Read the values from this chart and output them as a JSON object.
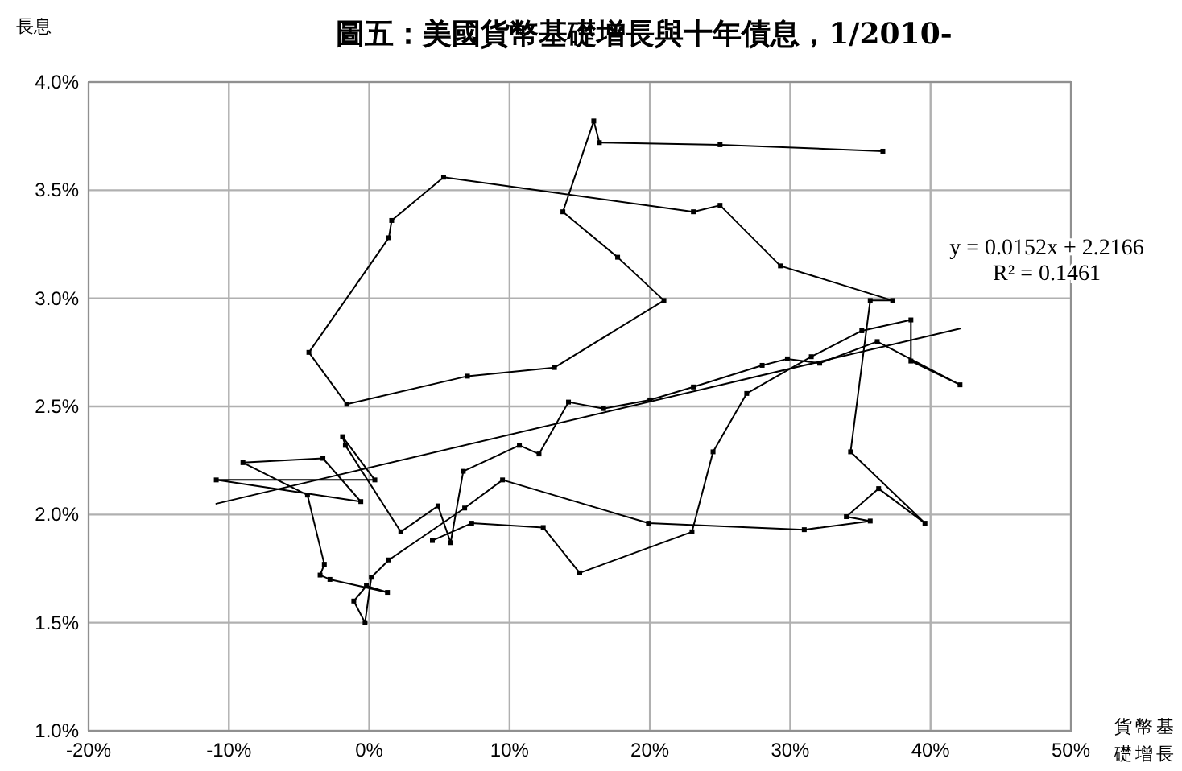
{
  "chart_data": {
    "type": "line",
    "title": "圖五：美國貨幣基礎增長與十年債息，1/2010-",
    "xlabel": "貨幣基礎增長",
    "ylabel": "長息",
    "xlim": [
      -20,
      50
    ],
    "ylim": [
      1,
      4
    ],
    "xticks": [
      {
        "value": -20,
        "label": "-20%"
      },
      {
        "value": -10,
        "label": "-10%"
      },
      {
        "value": 0,
        "label": "0%"
      },
      {
        "value": 10,
        "label": "10%"
      },
      {
        "value": 20,
        "label": "20%"
      },
      {
        "value": 30,
        "label": "30%"
      },
      {
        "value": 40,
        "label": "40%"
      },
      {
        "value": 50,
        "label": "50%"
      }
    ],
    "yticks": [
      {
        "value": 1,
        "label": "1.0%"
      },
      {
        "value": 1.5,
        "label": "1.5%"
      },
      {
        "value": 2,
        "label": "2.0%"
      },
      {
        "value": 2.5,
        "label": "2.5%"
      },
      {
        "value": 3,
        "label": "3.0%"
      },
      {
        "value": 3.5,
        "label": "3.5%"
      },
      {
        "value": 4,
        "label": "4.0%"
      }
    ],
    "grid": true,
    "marker": "square",
    "line_style": "solid",
    "annotations": [
      "y = 0.0152x + 2.2166",
      "R² = 0.1461"
    ],
    "series": [
      {
        "color": "#000000",
        "x": [
          36.6,
          25.0,
          16.4,
          16.0,
          13.8,
          17.7,
          21.0,
          13.2,
          7.0,
          -1.6,
          -4.3,
          1.4,
          1.6,
          5.3,
          23.1,
          25.0,
          29.3,
          37.3,
          35.7,
          34.3,
          39.6,
          36.3,
          34.0,
          35.7,
          31.0,
          19.9,
          9.5,
          6.8,
          1.4,
          0.15,
          -0.3,
          -1.1,
          -0.2,
          1.3,
          -2.8,
          -3.5,
          -3.2,
          -4.4,
          -9.0,
          -3.3,
          -0.6,
          -10.9,
          0.4,
          -1.9,
          -1.7,
          2.25,
          4.9,
          5.8,
          6.7,
          10.7,
          12.1,
          14.2,
          16.7,
          20.0,
          23.1,
          28.0,
          29.8,
          32.1,
          36.2,
          42.1,
          38.6,
          38.6,
          35.1,
          31.5,
          26.9,
          24.5,
          23.0,
          15.0,
          12.4,
          7.3,
          4.5
        ],
        "values": [
          3.68,
          3.71,
          3.72,
          3.82,
          3.4,
          3.19,
          2.99,
          2.68,
          2.64,
          2.51,
          2.75,
          3.28,
          3.36,
          3.56,
          3.4,
          3.43,
          3.15,
          2.99,
          2.99,
          2.29,
          1.96,
          2.12,
          1.99,
          1.97,
          1.93,
          1.96,
          2.16,
          2.03,
          1.79,
          1.71,
          1.5,
          1.6,
          1.67,
          1.64,
          1.7,
          1.72,
          1.77,
          2.09,
          2.24,
          2.26,
          2.06,
          2.16,
          2.16,
          2.36,
          2.32,
          1.92,
          2.04,
          1.87,
          2.2,
          2.32,
          2.28,
          2.52,
          2.49,
          2.53,
          2.59,
          2.69,
          2.72,
          2.7,
          2.8,
          2.6,
          2.71,
          2.9,
          2.85,
          2.73,
          2.56,
          2.29,
          1.92,
          1.73,
          1.94,
          1.96,
          1.88
        ]
      },
      {
        "color": "#000000",
        "marker": "none",
        "x": [
          -10.9,
          42.1
        ],
        "values": [
          2.05,
          2.86
        ]
      }
    ]
  }
}
